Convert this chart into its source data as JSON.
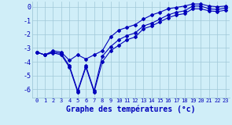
{
  "xlabel": "Graphe des températures (°c)",
  "background_color": "#d0eef8",
  "grid_color": "#a0c8d8",
  "line_color": "#0000bb",
  "xlim": [
    -0.5,
    23.5
  ],
  "ylim": [
    -6.6,
    0.4
  ],
  "yticks": [
    0,
    -1,
    -2,
    -3,
    -4,
    -5,
    -6
  ],
  "xticks": [
    0,
    1,
    2,
    3,
    4,
    5,
    6,
    7,
    8,
    9,
    10,
    11,
    12,
    13,
    14,
    15,
    16,
    17,
    18,
    19,
    20,
    21,
    22,
    23
  ],
  "hours": [
    0,
    1,
    2,
    3,
    4,
    5,
    6,
    7,
    8,
    9,
    10,
    11,
    12,
    13,
    14,
    15,
    16,
    17,
    18,
    19,
    20,
    21,
    22,
    23
  ],
  "line_mid": [
    -3.3,
    -3.5,
    -3.3,
    -3.4,
    -4.3,
    -6.1,
    -4.3,
    -6.1,
    -3.6,
    -2.9,
    -2.4,
    -2.1,
    -1.9,
    -1.4,
    -1.2,
    -0.9,
    -0.6,
    -0.4,
    -0.3,
    0.05,
    0.05,
    -0.15,
    -0.2,
    -0.1
  ],
  "line_upper": [
    -3.3,
    -3.5,
    -3.2,
    -3.3,
    -3.9,
    -3.5,
    -3.8,
    -3.5,
    -3.2,
    -2.2,
    -1.7,
    -1.5,
    -1.3,
    -0.9,
    -0.6,
    -0.4,
    -0.15,
    -0.05,
    0.05,
    0.2,
    0.2,
    0.05,
    -0.0,
    0.05
  ],
  "line_lower": [
    -3.3,
    -3.5,
    -3.35,
    -3.5,
    -4.4,
    -6.2,
    -4.4,
    -6.2,
    -4.0,
    -3.2,
    -2.8,
    -2.4,
    -2.2,
    -1.6,
    -1.4,
    -1.1,
    -0.8,
    -0.6,
    -0.5,
    -0.15,
    -0.15,
    -0.3,
    -0.35,
    -0.25
  ]
}
